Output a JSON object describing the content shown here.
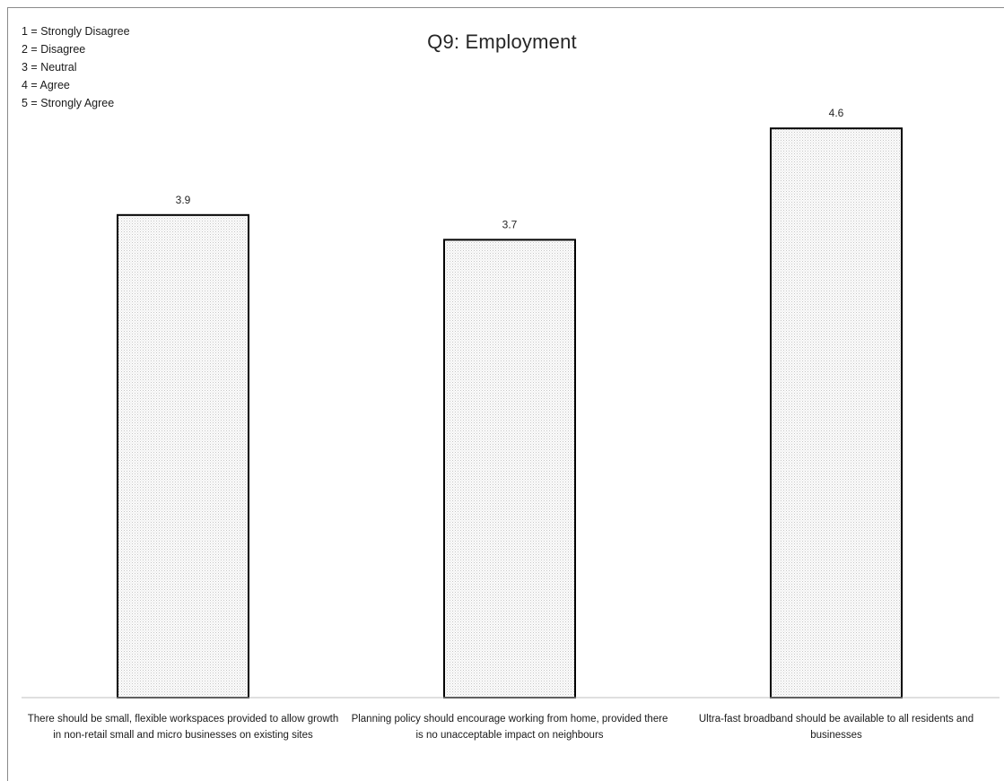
{
  "chart_data": {
    "type": "bar",
    "title": "Q9:  Employment",
    "scale_legend": [
      "1 = Strongly Disagree",
      "2 = Disagree",
      "3 = Neutral",
      "4 = Agree",
      "5 = Strongly Agree"
    ],
    "categories": [
      "There should be small, flexible workspaces provided to allow growth in non-retail small and micro businesses on existing sites",
      "Planning policy should encourage working from home, provided there is no unacceptable impact on neighbours",
      "Ultra-fast broadband should be available to all residents and businesses"
    ],
    "values": [
      3.9,
      3.7,
      4.6
    ],
    "data_labels": [
      "3.9",
      "3.7",
      "4.6"
    ],
    "ylim": [
      0,
      5
    ],
    "grid": false,
    "legend_position": "top-left",
    "bar_fill": "dotted light grey",
    "bar_edge_color": "#000000"
  }
}
